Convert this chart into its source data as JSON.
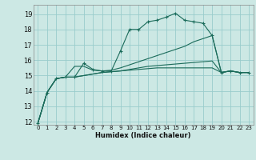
{
  "xlabel": "Humidex (Indice chaleur)",
  "bg_color": "#cce8e4",
  "grid_color": "#99cccc",
  "line_color": "#1a6b5a",
  "xlim": [
    -0.5,
    23.5
  ],
  "ylim": [
    11.8,
    19.6
  ],
  "xticks": [
    0,
    1,
    2,
    3,
    4,
    5,
    6,
    7,
    8,
    9,
    10,
    11,
    12,
    13,
    14,
    15,
    16,
    17,
    18,
    19,
    20,
    21,
    22,
    23
  ],
  "yticks": [
    12,
    13,
    14,
    15,
    16,
    17,
    18,
    19
  ],
  "series": [
    {
      "x": [
        0,
        1,
        2,
        3,
        4,
        5,
        6,
        7,
        8,
        9,
        10,
        11,
        12,
        13,
        14,
        15,
        16,
        17,
        18,
        19,
        20,
        21,
        22,
        23
      ],
      "y": [
        11.9,
        13.9,
        14.8,
        14.9,
        14.9,
        15.8,
        15.4,
        15.3,
        15.3,
        16.6,
        18.0,
        18.0,
        18.5,
        18.6,
        18.8,
        19.05,
        18.6,
        18.5,
        18.4,
        17.6,
        15.2,
        15.3,
        15.2,
        15.2
      ],
      "marker": true
    },
    {
      "x": [
        0,
        1,
        2,
        3,
        4,
        5,
        6,
        7,
        8,
        9,
        10,
        11,
        12,
        13,
        14,
        15,
        16,
        17,
        18,
        19,
        20,
        21,
        22,
        23
      ],
      "y": [
        11.9,
        13.9,
        14.8,
        14.9,
        15.6,
        15.6,
        15.35,
        15.3,
        15.35,
        15.5,
        15.7,
        15.9,
        16.1,
        16.3,
        16.5,
        16.7,
        16.9,
        17.2,
        17.4,
        17.6,
        15.2,
        15.3,
        15.2,
        15.2
      ],
      "marker": false
    },
    {
      "x": [
        0,
        1,
        2,
        3,
        4,
        5,
        6,
        7,
        8,
        9,
        10,
        11,
        12,
        13,
        14,
        15,
        16,
        17,
        18,
        19,
        20,
        21,
        22,
        23
      ],
      "y": [
        11.9,
        13.9,
        14.8,
        14.9,
        14.9,
        15.0,
        15.1,
        15.2,
        15.25,
        15.3,
        15.4,
        15.5,
        15.6,
        15.65,
        15.7,
        15.75,
        15.8,
        15.85,
        15.9,
        15.95,
        15.2,
        15.3,
        15.2,
        15.2
      ],
      "marker": false
    },
    {
      "x": [
        0,
        1,
        2,
        3,
        4,
        5,
        6,
        7,
        8,
        9,
        10,
        11,
        12,
        13,
        14,
        15,
        16,
        17,
        18,
        19,
        20,
        21,
        22,
        23
      ],
      "y": [
        11.9,
        13.9,
        14.8,
        14.9,
        14.9,
        15.0,
        15.1,
        15.2,
        15.25,
        15.3,
        15.35,
        15.4,
        15.45,
        15.5,
        15.5,
        15.5,
        15.5,
        15.5,
        15.5,
        15.5,
        15.2,
        15.3,
        15.2,
        15.2
      ],
      "marker": false
    }
  ]
}
